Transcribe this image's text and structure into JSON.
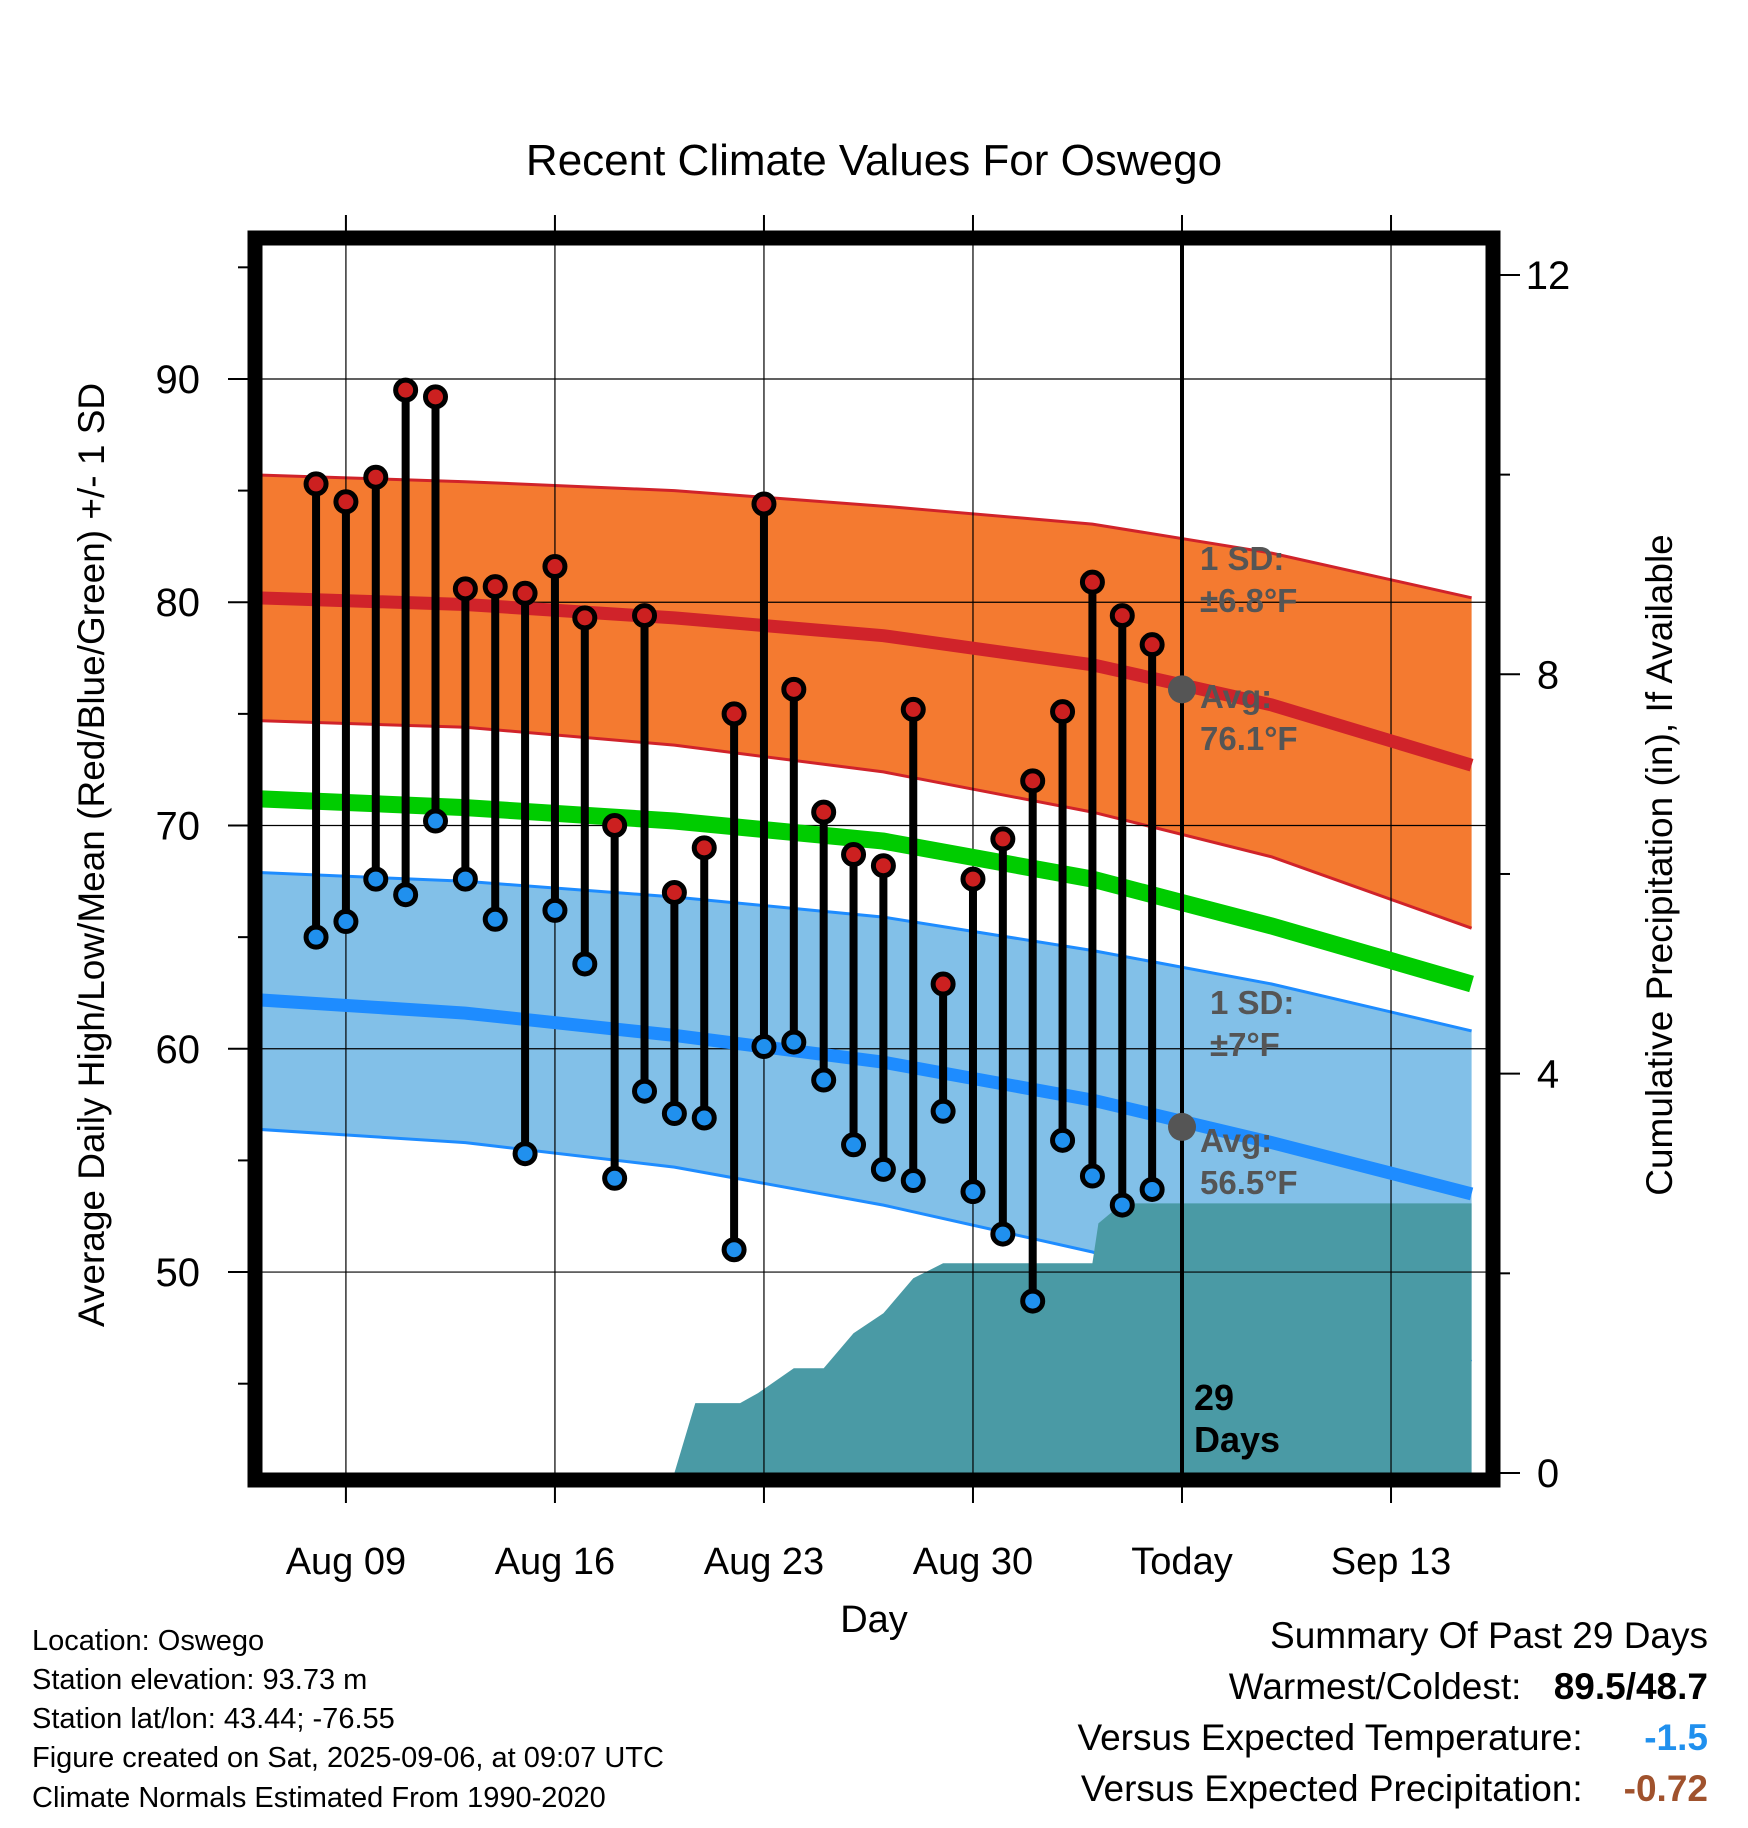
{
  "chart_data": {
    "type": "line",
    "title": "Recent Climate Values For Oswego",
    "xlabel": "Day",
    "ylabel": "Average Daily High/Low/Mean (Red/Blue/Green) +/- 1 SD",
    "y2label": "Cumulative Precipitation (in), If Available",
    "x_ticks": [
      "Aug 09",
      "Aug 16",
      "Aug 23",
      "Aug 30",
      "Today",
      "Sep 13"
    ],
    "x_tick_days": [
      -28,
      -21,
      -14,
      -7,
      0,
      7
    ],
    "xlim_days": [
      -31.2,
      9.7
    ],
    "ylim": [
      41,
      96
    ],
    "y_ticks": [
      50,
      60,
      70,
      80,
      90
    ],
    "y2lim": [
      0,
      12.3
    ],
    "y2_ticks": [
      0,
      4,
      8,
      12
    ],
    "normals": {
      "days": [
        -31,
        -24,
        -17,
        -10,
        -3,
        3,
        9.7
      ],
      "high_avg": [
        80.2,
        79.9,
        79.3,
        78.5,
        77.2,
        75.4,
        72.7
      ],
      "high_upper": [
        85.7,
        85.4,
        85.0,
        84.3,
        83.5,
        82.2,
        80.2
      ],
      "high_lower": [
        74.7,
        74.4,
        73.6,
        72.4,
        70.6,
        68.6,
        65.4
      ],
      "low_avg": [
        62.2,
        61.6,
        60.6,
        59.4,
        57.7,
        55.8,
        53.5
      ],
      "low_upper": [
        67.9,
        67.5,
        66.8,
        65.9,
        64.4,
        62.9,
        60.8
      ],
      "low_lower": [
        56.4,
        55.8,
        54.7,
        53.0,
        50.9,
        48.6,
        46.0
      ],
      "mean_avg": [
        71.2,
        70.8,
        70.2,
        69.3,
        67.6,
        65.5,
        62.9
      ]
    },
    "series": [
      {
        "name": "High",
        "days": [
          -29,
          -28,
          -27,
          -26,
          -25,
          -24,
          -23,
          -22,
          -21,
          -20,
          -19,
          -18,
          -17,
          -16,
          -15,
          -14,
          -13,
          -12,
          -11,
          -10,
          -9,
          -8,
          -7,
          -6,
          -5,
          -4,
          -3,
          -2,
          -1
        ],
        "values": [
          85.3,
          84.5,
          85.6,
          89.5,
          89.2,
          80.6,
          80.7,
          80.4,
          81.6,
          79.3,
          70.0,
          79.4,
          67.0,
          69.0,
          75.0,
          84.4,
          76.1,
          70.6,
          68.7,
          68.2,
          75.2,
          62.9,
          67.6,
          69.4,
          72.0,
          75.1,
          80.9,
          79.4,
          78.1
        ]
      },
      {
        "name": "Low",
        "days": [
          -29,
          -28,
          -27,
          -26,
          -25,
          -24,
          -23,
          -22,
          -21,
          -20,
          -19,
          -18,
          -17,
          -16,
          -15,
          -14,
          -13,
          -12,
          -11,
          -10,
          -9,
          -8,
          -7,
          -6,
          -5,
          -4,
          -3,
          -2,
          -1
        ],
        "values": [
          65.0,
          65.7,
          67.6,
          66.9,
          70.2,
          67.6,
          65.8,
          55.3,
          66.2,
          63.8,
          54.2,
          58.1,
          57.1,
          56.9,
          51.0,
          60.1,
          60.3,
          58.6,
          55.7,
          54.6,
          54.1,
          57.2,
          53.6,
          51.7,
          48.7,
          55.9,
          54.3,
          53.0,
          53.7
        ]
      },
      {
        "name": "Cumulative Precipitation",
        "days": [
          -17,
          -16.3,
          -14.8,
          -14.2,
          -13,
          -12,
          -11,
          -10,
          -9,
          -8,
          -7,
          -3,
          -2.8,
          -2,
          9.7
        ],
        "values": [
          0,
          0.7,
          0.7,
          0.8,
          1.05,
          1.05,
          1.4,
          1.6,
          1.95,
          2.1,
          2.1,
          2.1,
          2.5,
          2.7,
          2.7
        ]
      }
    ],
    "markers": [
      {
        "series": "High",
        "day": 0,
        "value": 76.1
      },
      {
        "series": "Low",
        "day": 0,
        "value": 56.5
      }
    ],
    "annotations": {
      "high_sd_label": "1 SD:",
      "high_sd_value": "±6.8°F",
      "high_avg_label": "Avg:",
      "high_avg_value": "76.1°F",
      "low_sd_label": "1 SD:",
      "low_sd_value": "±7°F",
      "low_avg_label": "Avg:",
      "low_avg_value": "56.5°F",
      "days_count": "29",
      "days_word": "Days"
    },
    "colors": {
      "high_band": "#f47a30",
      "high_line": "#d0232a",
      "low_band": "#82c0e8",
      "low_line": "#1e8cff",
      "mean_line": "#00cc00",
      "precip": "#4a9aa5",
      "high_dot": "#cc2020",
      "low_dot": "#2090ee",
      "today_marker": "#555555",
      "annotation": "#555555"
    },
    "grid": true
  },
  "footer": {
    "location": "Location: Oswego",
    "elevation": "Station elevation: 93.73 m",
    "latlon": "Station lat/lon: 43.44; -76.55",
    "created": "Figure created on Sat, 2025-09-06, at 09:07 UTC",
    "normals": "Climate Normals Estimated From 1990-2020"
  },
  "summary": {
    "title": "Summary Of Past 29 Days",
    "warm_cold_label": "Warmest/Coldest:",
    "warmest": "89.5",
    "slash": "/",
    "coldest": "48.7",
    "temp_label": "Versus Expected Temperature:",
    "temp_value": "-1.5",
    "temp_color": "#2090ee",
    "precip_label": "Versus Expected Precipitation:",
    "precip_value": "-0.72",
    "precip_color": "#a0522d"
  }
}
